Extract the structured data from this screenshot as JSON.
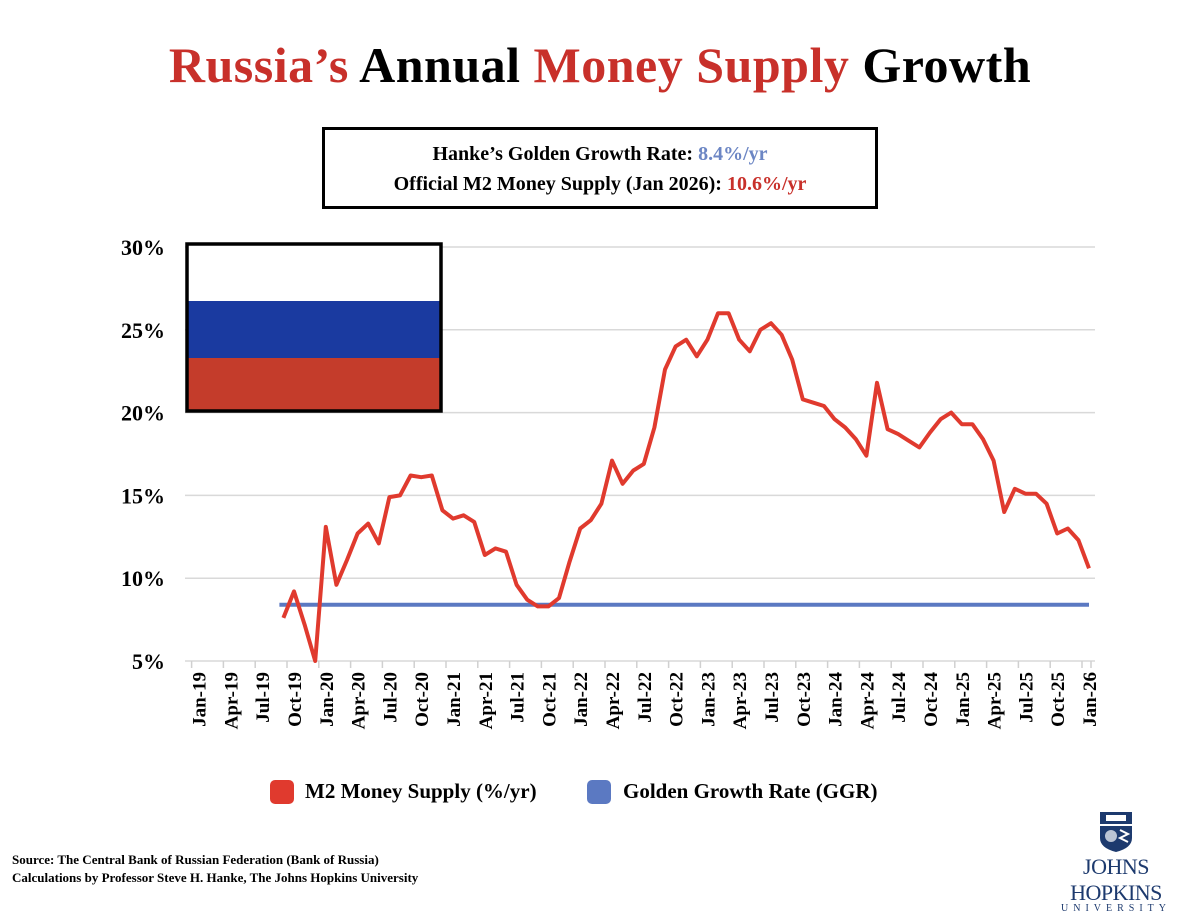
{
  "title": {
    "part1": "Russia’s",
    "part2": "Annual",
    "part3": "Money Supply",
    "part4": "Growth"
  },
  "infobox": {
    "line1_label": "Hanke’s Golden Growth Rate:",
    "line1_value": "8.4%/yr",
    "line2_label": "Official M2 Money Supply (Jan 2026):",
    "line2_value": "10.6%/yr"
  },
  "colors": {
    "m2": "#e03a2e",
    "ggr": "#5b79c2",
    "title_red": "#c8302a",
    "flag_white": "#ffffff",
    "flag_blue": "#1a3aa0",
    "flag_red": "#c43c2b"
  },
  "flag_icon": "russian-flag",
  "chart_data": {
    "type": "line",
    "title": "Russia’s Annual Money Supply Growth",
    "xlabel": "",
    "ylabel": "",
    "ylim": [
      5,
      30
    ],
    "yticks": [
      "5%",
      "10%",
      "15%",
      "20%",
      "25%",
      "30%"
    ],
    "grid": true,
    "legend_position": "bottom",
    "x_tick_labels": [
      "Jan-19",
      "Apr-19",
      "Jul-19",
      "Oct-19",
      "Jan-20",
      "Apr-20",
      "Jul-20",
      "Oct-20",
      "Jan-21",
      "Apr-21",
      "Jul-21",
      "Oct-21",
      "Jan-22",
      "Apr-22",
      "Jul-22",
      "Oct-22",
      "Jan-23",
      "Apr-23",
      "Jul-23",
      "Oct-23",
      "Jan-24",
      "Apr-24",
      "Jul-24",
      "Oct-24",
      "Jan-25",
      "Apr-25",
      "Jul-25",
      "Oct-25",
      "Jan-26"
    ],
    "x_start": "Sep-19",
    "x_end": "Jan-26",
    "series": [
      {
        "name": "M2 Money Supply (%/yr)",
        "color": "#e03a2e",
        "values": [
          7.6,
          9.2,
          7.2,
          5.0,
          13.1,
          9.6,
          11.1,
          12.7,
          13.3,
          12.1,
          14.9,
          15.0,
          16.2,
          16.1,
          16.2,
          14.1,
          13.6,
          13.8,
          13.4,
          11.4,
          11.8,
          11.6,
          9.6,
          8.7,
          8.3,
          8.3,
          8.8,
          11.0,
          13.0,
          13.5,
          14.5,
          17.1,
          15.7,
          16.5,
          16.9,
          19.1,
          22.6,
          24.0,
          24.4,
          23.4,
          24.4,
          26.0,
          26.0,
          24.4,
          23.7,
          25.0,
          25.4,
          24.7,
          23.2,
          20.8,
          20.6,
          20.4,
          19.6,
          19.1,
          18.4,
          17.4,
          21.8,
          19.0,
          18.7,
          18.3,
          17.9,
          18.8,
          19.6,
          20.0,
          19.3,
          19.3,
          18.4,
          17.1,
          14.0,
          15.4,
          15.1,
          15.1,
          14.5,
          12.7,
          13.0,
          12.3,
          10.6
        ]
      },
      {
        "name": "Golden Growth Rate (GGR)",
        "color": "#5b79c2",
        "constant": 8.4
      }
    ]
  },
  "legend": {
    "m2": "M2 Money Supply (%/yr)",
    "ggr": "Golden Growth Rate (GGR)"
  },
  "footer": {
    "source": "Source: The Central Bank of Russian Federation (Bank of Russia)",
    "calc": "Calculations by Professor Steve H. Hanke, The Johns Hopkins University"
  },
  "logo": {
    "name": "JOHNS HOPKINS",
    "sub": "UNIVERSITY"
  }
}
